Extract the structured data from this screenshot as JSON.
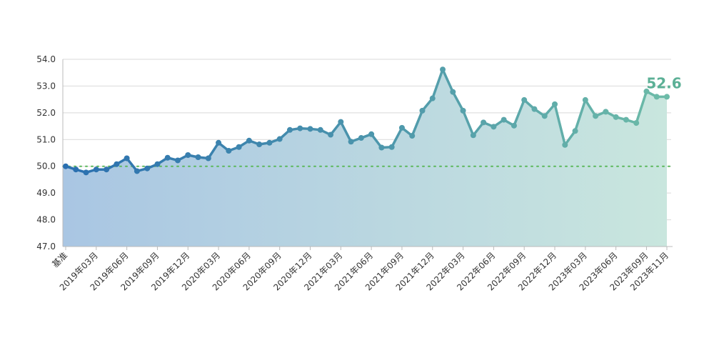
{
  "chart_data": {
    "type": "line",
    "title": "",
    "xlabel": "",
    "ylabel": "",
    "ylim": [
      47.0,
      54.0
    ],
    "yticks": [
      "47.0",
      "48.0",
      "49.0",
      "50.0",
      "51.0",
      "52.0",
      "53.0",
      "54.0"
    ],
    "grid": true,
    "baseline": 50.0,
    "x_tick_labels": [
      {
        "index": 0,
        "label": "基准"
      },
      {
        "index": 3,
        "label": "2019年03月"
      },
      {
        "index": 6,
        "label": "2019年06月"
      },
      {
        "index": 9,
        "label": "2019年09月"
      },
      {
        "index": 12,
        "label": "2019年12月"
      },
      {
        "index": 15,
        "label": "2020年03月"
      },
      {
        "index": 18,
        "label": "2020年06月"
      },
      {
        "index": 21,
        "label": "2020年09月"
      },
      {
        "index": 24,
        "label": "2020年12月"
      },
      {
        "index": 27,
        "label": "2021年03月"
      },
      {
        "index": 30,
        "label": "2021年06月"
      },
      {
        "index": 33,
        "label": "2021年09月"
      },
      {
        "index": 36,
        "label": "2021年12月"
      },
      {
        "index": 39,
        "label": "2022年03月"
      },
      {
        "index": 42,
        "label": "2022年06月"
      },
      {
        "index": 45,
        "label": "2022年09月"
      },
      {
        "index": 48,
        "label": "2022年12月"
      },
      {
        "index": 51,
        "label": "2023年03月"
      },
      {
        "index": 54,
        "label": "2023年06月"
      },
      {
        "index": 57,
        "label": "2023年09月"
      },
      {
        "index": 59,
        "label": "2023年11月"
      }
    ],
    "series": [
      {
        "values": [
          50.0,
          49.88,
          49.77,
          49.88,
          49.88,
          50.08,
          50.3,
          49.82,
          49.92,
          50.08,
          50.32,
          50.22,
          50.42,
          50.34,
          50.3,
          50.88,
          50.58,
          50.72,
          50.96,
          50.82,
          50.88,
          51.02,
          51.36,
          51.42,
          51.4,
          51.36,
          51.18,
          51.66,
          50.92,
          51.06,
          51.2,
          50.7,
          50.72,
          51.44,
          51.14,
          52.08,
          52.54,
          53.62,
          52.78,
          52.08,
          51.16,
          51.64,
          51.48,
          51.74,
          51.52,
          52.48,
          52.14,
          51.88,
          52.32,
          50.8,
          51.32,
          52.48,
          51.88,
          52.04,
          51.84,
          51.74,
          51.62,
          52.8,
          52.6,
          52.6
        ]
      }
    ],
    "last_value_label": "52.6",
    "colors": {
      "line_start": "#2a6fb0",
      "line_end": "#6dbba8",
      "area_start": "#a9c6e3",
      "area_end": "#c9e6de",
      "baseline": "#5cb85c",
      "grid": "#d9d9d9",
      "axis": "#bbbbbb",
      "last_label": "#5cb096"
    }
  }
}
